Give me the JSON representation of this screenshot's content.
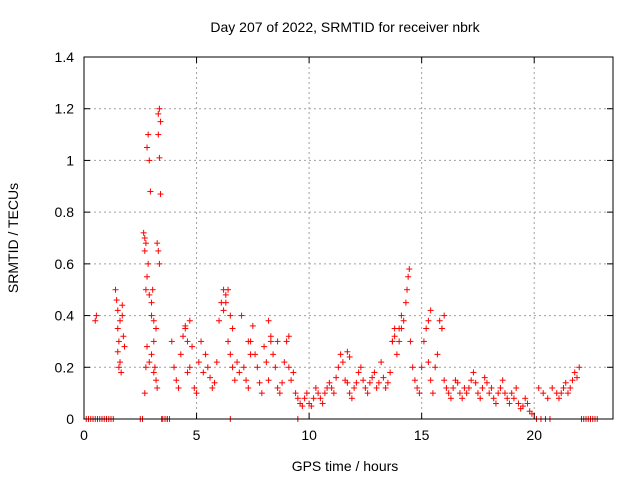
{
  "chart_data": {
    "type": "scatter",
    "title": "Day 207 of 2022, SRMTID for receiver nbrk",
    "xlabel": "GPS time / hours",
    "ylabel": "SRMTID / TECUs",
    "xlim": [
      0,
      23.5
    ],
    "ylim": [
      0,
      1.4
    ],
    "xticks": [
      0,
      5,
      10,
      15,
      20
    ],
    "xtick_labels": [
      "0",
      "5",
      "10",
      "15",
      "20"
    ],
    "yticks": [
      0,
      0.2,
      0.4,
      0.6,
      0.8,
      1.0,
      1.2,
      1.4
    ],
    "ytick_labels": [
      "0",
      "0.2",
      "0.4",
      "0.6",
      "0.8",
      "1",
      "1.2",
      "1.4"
    ],
    "grid": true,
    "marker": "plus",
    "marker_color": "#ff0000",
    "series": [
      {
        "name": "SRMTID",
        "x": [
          0.1,
          0.2,
          0.3,
          0.4,
          0.5,
          0.6,
          0.7,
          0.8,
          0.9,
          1.0,
          1.1,
          1.2,
          1.3,
          0.5,
          0.55,
          1.4,
          1.45,
          1.5,
          1.5,
          1.55,
          1.6,
          1.6,
          1.65,
          1.7,
          1.7,
          1.75,
          1.8,
          1.5,
          1.55,
          2.5,
          2.6,
          2.7,
          2.75,
          2.8,
          2.85,
          2.9,
          2.95,
          3.0,
          3.05,
          3.1,
          3.15,
          3.2,
          3.25,
          3.3,
          3.35,
          3.4,
          3.45,
          3.5,
          3.6,
          3.7,
          3.8,
          2.65,
          2.7,
          2.75,
          2.7,
          2.8,
          2.75,
          2.85,
          2.9,
          3.0,
          3.1,
          3.2,
          3.25,
          3.3,
          3.35,
          3.3,
          3.35,
          3.4,
          2.8,
          2.9,
          3.0,
          3.1,
          3.9,
          4.0,
          4.1,
          4.2,
          4.3,
          4.4,
          4.5,
          4.6,
          4.7,
          4.8,
          4.9,
          5.0,
          5.1,
          5.2,
          5.3,
          5.4,
          5.5,
          5.6,
          5.7,
          5.8,
          5.9,
          6.0,
          6.1,
          6.2,
          6.3,
          6.4,
          6.5,
          6.6,
          6.7,
          6.8,
          6.9,
          7.0,
          7.1,
          7.2,
          7.3,
          7.4,
          7.5,
          7.6,
          7.7,
          7.8,
          7.9,
          8.0,
          8.1,
          8.2,
          8.3,
          8.4,
          8.5,
          8.6,
          8.7,
          8.8,
          8.9,
          9.0,
          9.1,
          9.2,
          9.3,
          9.4,
          9.5,
          9.6,
          9.7,
          9.8,
          9.9,
          10.0,
          10.1,
          10.2,
          10.3,
          10.4,
          10.5,
          10.6,
          10.7,
          10.8,
          10.9,
          11.0,
          11.1,
          11.2,
          11.3,
          11.4,
          11.5,
          11.6,
          11.7,
          11.8,
          11.9,
          12.0,
          12.1,
          12.2,
          12.3,
          12.4,
          12.5,
          12.6,
          12.7,
          12.8,
          12.9,
          13.0,
          13.1,
          13.2,
          13.3,
          13.4,
          13.5,
          13.6,
          13.7,
          13.8,
          13.9,
          14.0,
          14.1,
          14.2,
          14.3,
          14.35,
          14.4,
          14.45,
          14.5,
          14.6,
          14.7,
          14.8,
          14.9,
          15.0,
          15.1,
          15.2,
          15.3,
          15.4,
          15.5,
          15.6,
          15.7,
          15.8,
          15.9,
          16.0,
          16.1,
          16.2,
          16.3,
          16.4,
          16.5,
          16.6,
          16.7,
          16.8,
          16.9,
          17.0,
          17.1,
          17.2,
          17.3,
          17.4,
          17.5,
          17.6,
          17.7,
          17.8,
          17.9,
          18.0,
          18.1,
          18.2,
          18.3,
          18.4,
          18.5,
          18.6,
          18.7,
          18.8,
          18.9,
          19.0,
          19.1,
          19.2,
          19.3,
          19.4,
          19.5,
          19.6,
          19.7,
          19.8,
          19.9,
          4.5,
          4.6,
          4.7,
          6.2,
          6.3,
          6.4,
          6.5,
          6.6,
          7.3,
          7.4,
          8.2,
          8.3,
          8.6,
          9.1,
          11.7,
          11.8,
          13.7,
          13.8,
          14.0,
          14.1,
          15.3,
          15.4,
          15.9,
          16.0,
          20.2,
          20.4,
          20.6,
          20.8,
          21.0,
          21.1,
          21.2,
          21.3,
          21.4,
          21.5,
          21.6,
          21.7,
          21.8,
          21.9,
          22.0,
          20.1,
          20.3,
          20.5,
          20.7,
          22.1,
          22.2,
          22.3,
          22.4,
          22.5,
          22.6,
          22.7,
          22.8,
          9.5,
          6.5,
          3.6,
          3.7
        ],
        "y": [
          0,
          0,
          0,
          0,
          0,
          0,
          0,
          0,
          0,
          0,
          0,
          0,
          0,
          0.38,
          0.4,
          0.5,
          0.46,
          0.42,
          0.35,
          0.3,
          0.38,
          0.22,
          0.18,
          0.44,
          0.4,
          0.32,
          0.28,
          0.26,
          0.2,
          0,
          0,
          0.1,
          0.2,
          1.05,
          1.1,
          1.0,
          0.88,
          0.4,
          0.5,
          0.3,
          0.2,
          0.15,
          0.12,
          1.18,
          1.2,
          1.15,
          0,
          0,
          0,
          0,
          0,
          0.72,
          0.7,
          0.68,
          0.65,
          0.55,
          0.5,
          0.6,
          0.48,
          0.45,
          0.38,
          0.35,
          0.68,
          0.65,
          0.6,
          1.1,
          1.01,
          0.87,
          0.28,
          0.22,
          0.25,
          0.18,
          0.3,
          0.2,
          0.15,
          0.12,
          0.25,
          0.32,
          0.36,
          0.18,
          0.2,
          0.28,
          0.12,
          0.1,
          0.22,
          0.3,
          0.18,
          0.25,
          0.2,
          0.16,
          0.12,
          0.14,
          0.22,
          0.38,
          0.45,
          0.5,
          0.48,
          0.3,
          0.25,
          0.2,
          0.15,
          0.22,
          0.18,
          0.4,
          0.2,
          0.15,
          0.12,
          0.3,
          0.36,
          0.25,
          0.2,
          0.14,
          0.1,
          0.28,
          0.22,
          0.15,
          0.3,
          0.25,
          0.2,
          0.12,
          0.1,
          0.14,
          0.22,
          0.3,
          0.2,
          0.15,
          0.18,
          0.1,
          0.08,
          0.06,
          0.05,
          0.08,
          0.1,
          0.06,
          0.05,
          0.08,
          0.12,
          0.1,
          0.08,
          0.06,
          0.1,
          0.12,
          0.14,
          0.12,
          0.1,
          0.16,
          0.2,
          0.25,
          0.22,
          0.15,
          0.14,
          0.1,
          0.08,
          0.12,
          0.14,
          0.18,
          0.2,
          0.15,
          0.12,
          0.1,
          0.14,
          0.16,
          0.18,
          0.12,
          0.14,
          0.22,
          0.16,
          0.12,
          0.14,
          0.18,
          0.3,
          0.35,
          0.25,
          0.3,
          0.35,
          0.38,
          0.45,
          0.5,
          0.55,
          0.58,
          0.3,
          0.2,
          0.15,
          0.12,
          0.1,
          0.2,
          0.3,
          0.35,
          0.22,
          0.15,
          0.1,
          0.2,
          0.25,
          0.38,
          0.35,
          0.15,
          0.12,
          0.1,
          0.08,
          0.12,
          0.15,
          0.14,
          0.1,
          0.08,
          0.12,
          0.1,
          0.12,
          0.15,
          0.18,
          0.14,
          0.1,
          0.08,
          0.12,
          0.16,
          0.14,
          0.1,
          0.12,
          0.08,
          0.06,
          0.1,
          0.12,
          0.15,
          0.1,
          0.08,
          0.06,
          0.1,
          0.08,
          0.12,
          0.06,
          0.04,
          0.05,
          0.08,
          0.06,
          0.03,
          0.02,
          0.35,
          0.3,
          0.38,
          0.42,
          0.45,
          0.5,
          0.4,
          0.35,
          0.3,
          0.25,
          0.38,
          0.32,
          0.3,
          0.32,
          0.26,
          0.24,
          0.3,
          0.32,
          0.35,
          0.4,
          0.38,
          0.42,
          0.35,
          0.4,
          0.12,
          0.1,
          0.08,
          0.12,
          0.1,
          0.08,
          0.1,
          0.12,
          0.14,
          0.1,
          0.12,
          0.15,
          0.18,
          0.16,
          0.2,
          0,
          0,
          0,
          0,
          0,
          0,
          0,
          0,
          0,
          0,
          0,
          0,
          0,
          0,
          0,
          0
        ]
      }
    ]
  }
}
